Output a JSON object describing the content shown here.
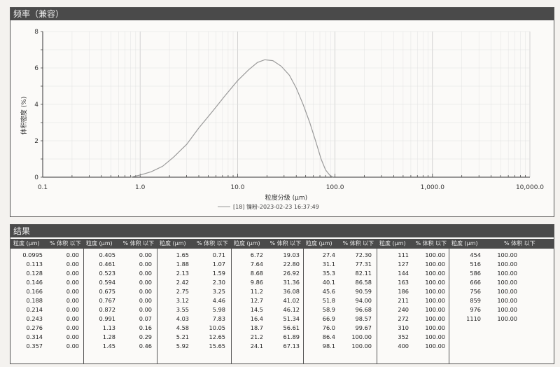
{
  "chart_panel": {
    "title": "频率（兼容）"
  },
  "chart_data": {
    "type": "line",
    "title": "",
    "ylabel": "体积密度 (%)",
    "xlabel": "粒度分级 (μm)",
    "xscale": "log",
    "xlim": [
      0.1,
      10000
    ],
    "ylim": [
      0,
      8
    ],
    "x_ticks": [
      "0.1",
      "1.0",
      "10.0",
      "100.0",
      "1,000.0",
      "10,000.0"
    ],
    "y_ticks": [
      "0",
      "2",
      "4",
      "6",
      "8"
    ],
    "legend": "[18] 镍粉-2023-02-23 16:37:49",
    "series": [
      {
        "name": "[18] 镍粉-2023-02-23 16:37:49",
        "x": [
          0.8,
          1.0,
          1.3,
          1.7,
          2.2,
          3.0,
          4.0,
          5.5,
          7.5,
          10,
          13,
          16,
          19,
          23,
          28,
          34,
          40,
          47,
          55,
          64,
          72,
          80,
          88,
          96
        ],
        "y": [
          0.0,
          0.12,
          0.3,
          0.6,
          1.1,
          1.8,
          2.7,
          3.6,
          4.5,
          5.3,
          5.9,
          6.3,
          6.45,
          6.4,
          6.1,
          5.6,
          4.9,
          4.0,
          3.0,
          1.9,
          1.0,
          0.4,
          0.12,
          0.0
        ]
      }
    ],
    "grid": true,
    "legend_position": "bottom-center"
  },
  "results": {
    "title": "结果",
    "size_header": "粒度 (μm)",
    "pct_header": "% 体积 以下",
    "columns": [
      [
        [
          "0.0995",
          "0.00"
        ],
        [
          "0.113",
          "0.00"
        ],
        [
          "0.128",
          "0.00"
        ],
        [
          "0.146",
          "0.00"
        ],
        [
          "0.166",
          "0.00"
        ],
        [
          "0.188",
          "0.00"
        ],
        [
          "0.214",
          "0.00"
        ],
        [
          "0.243",
          "0.00"
        ],
        [
          "0.276",
          "0.00"
        ],
        [
          "0.314",
          "0.00"
        ],
        [
          "0.357",
          "0.00"
        ]
      ],
      [
        [
          "0.405",
          "0.00"
        ],
        [
          "0.461",
          "0.00"
        ],
        [
          "0.523",
          "0.00"
        ],
        [
          "0.594",
          "0.00"
        ],
        [
          "0.675",
          "0.00"
        ],
        [
          "0.767",
          "0.00"
        ],
        [
          "0.872",
          "0.00"
        ],
        [
          "0.991",
          "0.07"
        ],
        [
          "1.13",
          "0.16"
        ],
        [
          "1.28",
          "0.29"
        ],
        [
          "1.45",
          "0.46"
        ]
      ],
      [
        [
          "1.65",
          "0.71"
        ],
        [
          "1.88",
          "1.07"
        ],
        [
          "2.13",
          "1.59"
        ],
        [
          "2.42",
          "2.30"
        ],
        [
          "2.75",
          "3.25"
        ],
        [
          "3.12",
          "4.46"
        ],
        [
          "3.55",
          "5.98"
        ],
        [
          "4.03",
          "7.83"
        ],
        [
          "4.58",
          "10.05"
        ],
        [
          "5.21",
          "12.65"
        ],
        [
          "5.92",
          "15.65"
        ]
      ],
      [
        [
          "6.72",
          "19.03"
        ],
        [
          "7.64",
          "22.80"
        ],
        [
          "8.68",
          "26.92"
        ],
        [
          "9.86",
          "31.36"
        ],
        [
          "11.2",
          "36.08"
        ],
        [
          "12.7",
          "41.02"
        ],
        [
          "14.5",
          "46.12"
        ],
        [
          "16.4",
          "51.34"
        ],
        [
          "18.7",
          "56.61"
        ],
        [
          "21.2",
          "61.89"
        ],
        [
          "24.1",
          "67.13"
        ]
      ],
      [
        [
          "27.4",
          "72.30"
        ],
        [
          "31.1",
          "77.31"
        ],
        [
          "35.3",
          "82.11"
        ],
        [
          "40.1",
          "86.58"
        ],
        [
          "45.6",
          "90.59"
        ],
        [
          "51.8",
          "94.00"
        ],
        [
          "58.9",
          "96.68"
        ],
        [
          "66.9",
          "98.57"
        ],
        [
          "76.0",
          "99.67"
        ],
        [
          "86.4",
          "100.00"
        ],
        [
          "98.1",
          "100.00"
        ]
      ],
      [
        [
          "111",
          "100.00"
        ],
        [
          "127",
          "100.00"
        ],
        [
          "144",
          "100.00"
        ],
        [
          "163",
          "100.00"
        ],
        [
          "186",
          "100.00"
        ],
        [
          "211",
          "100.00"
        ],
        [
          "240",
          "100.00"
        ],
        [
          "272",
          "100.00"
        ],
        [
          "310",
          "100.00"
        ],
        [
          "352",
          "100.00"
        ],
        [
          "400",
          "100.00"
        ]
      ],
      [
        [
          "454",
          "100.00"
        ],
        [
          "516",
          "100.00"
        ],
        [
          "586",
          "100.00"
        ],
        [
          "666",
          "100.00"
        ],
        [
          "756",
          "100.00"
        ],
        [
          "859",
          "100.00"
        ],
        [
          "976",
          "100.00"
        ],
        [
          "1110",
          "100.00"
        ]
      ]
    ]
  }
}
